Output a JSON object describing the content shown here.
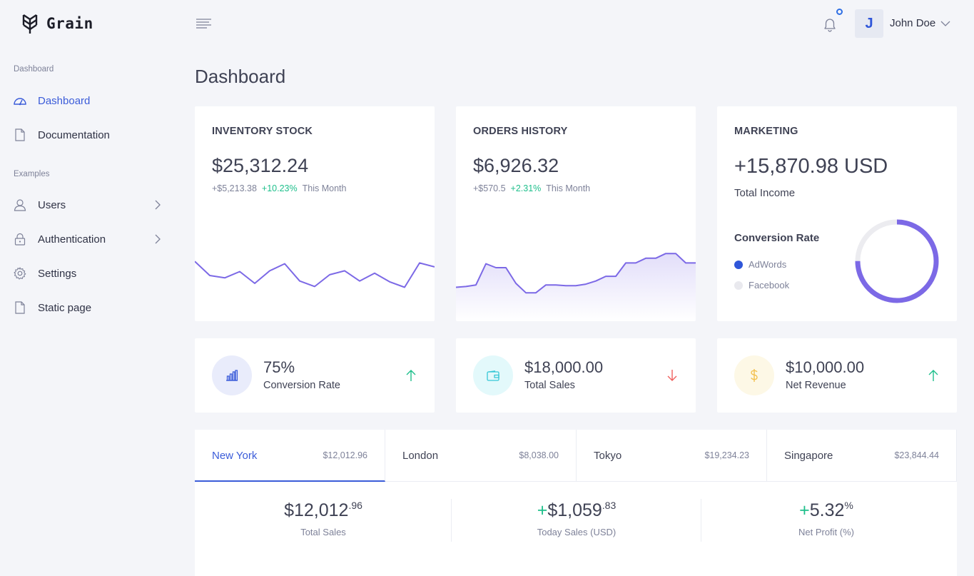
{
  "brand": {
    "name": "Grain"
  },
  "sidebar": {
    "sections": [
      {
        "title": "Dashboard",
        "items": [
          {
            "label": "Dashboard",
            "icon": "gauge-icon",
            "active": true
          },
          {
            "label": "Documentation",
            "icon": "file-icon"
          }
        ]
      },
      {
        "title": "Examples",
        "items": [
          {
            "label": "Users",
            "icon": "user-icon",
            "has_children": true
          },
          {
            "label": "Authentication",
            "icon": "lock-icon",
            "has_children": true
          },
          {
            "label": "Settings",
            "icon": "gear-icon"
          },
          {
            "label": "Static page",
            "icon": "file-icon"
          }
        ]
      }
    ]
  },
  "topbar": {
    "user": {
      "initial": "J",
      "name": "John Doe"
    },
    "notification_indicator": true
  },
  "page": {
    "title": "Dashboard"
  },
  "cards": {
    "inventory": {
      "title": "INVENTORY STOCK",
      "value": "$25,312.24",
      "change": "+$5,213.38",
      "change_pct": "+10.23%",
      "period": "This Month",
      "sparkline": [
        58,
        40,
        37,
        45,
        30,
        46,
        55,
        33,
        26,
        41,
        46,
        33,
        43,
        32,
        25,
        56,
        51
      ]
    },
    "orders": {
      "title": "ORDERS HISTORY",
      "value": "$6,926.32",
      "change": "+$570.5",
      "change_pct": "+2.31%",
      "period": "This Month",
      "sparkline": [
        25,
        26,
        28,
        55,
        50,
        50,
        30,
        18,
        18,
        28,
        28,
        27,
        27,
        29,
        33,
        39,
        39,
        56,
        56,
        62,
        62,
        68,
        68,
        56,
        56
      ]
    },
    "marketing": {
      "title": "MARKETING",
      "value": "+15,870.98 USD",
      "label": "Total Income",
      "conversion_title": "Conversion Rate",
      "legend": [
        {
          "label": "AdWords",
          "color": "#2f56d9"
        },
        {
          "label": "Facebook",
          "color": "#e9e9ee"
        }
      ],
      "donut": {
        "fraction": 0.75,
        "color": "#7c69e6",
        "track": "#ececf0"
      }
    }
  },
  "stats": [
    {
      "value": "75%",
      "label": "Conversion Rate",
      "icon": "bar-chart-icon",
      "trend": "up",
      "bg": "#e9ecfb",
      "color": "#3b5cd9"
    },
    {
      "value": "$18,000.00",
      "label": "Total Sales",
      "icon": "wallet-icon",
      "trend": "down",
      "bg": "#e3f9fb",
      "color": "#35c7d6"
    },
    {
      "value": "$10,000.00",
      "label": "Net Revenue",
      "icon": "dollar-icon",
      "trend": "up",
      "bg": "#fdf8e6",
      "color": "#f3c04f"
    }
  ],
  "cities": {
    "tabs": [
      {
        "name": "New York",
        "value": "$12,012.96",
        "active": true
      },
      {
        "name": "London",
        "value": "$8,038.00"
      },
      {
        "name": "Tokyo",
        "value": "$19,234.23"
      },
      {
        "name": "Singapore",
        "value": "$23,844.44"
      }
    ],
    "metrics": [
      {
        "prefix": "",
        "main": "$12,012",
        "sup": ".96",
        "label": "Total Sales"
      },
      {
        "prefix": "+",
        "main": "$1,059",
        "sup": ".83",
        "label": "Today Sales (USD)"
      },
      {
        "prefix": "+",
        "main": "5.32",
        "sup": "%",
        "label": "Net Profit (%)"
      }
    ]
  },
  "colors": {
    "accent": "#3b5cd9",
    "positive": "#1ebf8b",
    "negative": "#f0605e",
    "chart_line": "#7c69e6"
  }
}
